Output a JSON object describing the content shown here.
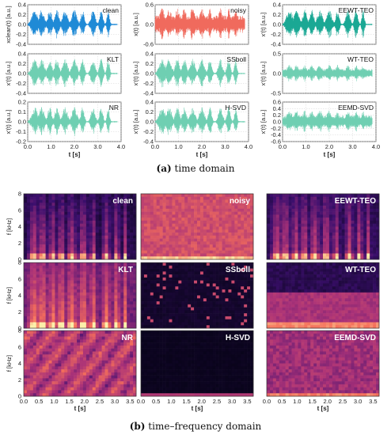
{
  "captions": {
    "a_label": "(a)",
    "a_text": "time domain",
    "b_label": "(b)",
    "b_text": "time–frequency domain"
  },
  "chart_data": [
    {
      "type": "line",
      "panel": "a",
      "xlabel": "t [s]",
      "xlim": [
        0,
        4.0
      ],
      "xticks": [
        "0.0",
        "1.0",
        "2.0",
        "3.0",
        "4.0"
      ],
      "grid": true,
      "plots": [
        {
          "label": "clean",
          "ylabel": "xclean(t) [a.u.]",
          "ylim": [
            -0.4,
            0.4
          ],
          "yticks": [
            "0.4",
            "0.2",
            "0.0",
            "-0.2",
            "-0.4"
          ],
          "color": "#1f8ad6",
          "amplitude": 0.3
        },
        {
          "label": "noisy",
          "ylabel": "x(t) [a.u.]",
          "ylim": [
            -0.6,
            0.6
          ],
          "yticks": [
            "0.6",
            "0.0",
            "-0.6"
          ],
          "color": "#f06a5d",
          "amplitude": 0.5
        },
        {
          "label": "EEWT-TEO",
          "ylabel": "x'(t) [a.u.]",
          "ylim": [
            -0.4,
            0.4
          ],
          "yticks": [
            "0.4",
            "0.2",
            "0.0",
            "-0.2",
            "-0.4"
          ],
          "color": "#1aa894",
          "amplitude": 0.3
        },
        {
          "label": "KLT",
          "ylabel": "x'(t) [a.u.]",
          "ylim": [
            -0.4,
            0.4
          ],
          "yticks": [
            "0.4",
            "0.2",
            "0.0",
            "-0.2",
            "-0.4"
          ],
          "color": "#6fcfb2",
          "amplitude": 0.3
        },
        {
          "label": "SSboll",
          "ylabel": "x'(t) [a.u.]",
          "ylim": [
            -0.4,
            0.4
          ],
          "yticks": [
            "0.4",
            "0.2",
            "0.0",
            "-0.2",
            "-0.4"
          ],
          "color": "#6fcfb2",
          "amplitude": 0.3
        },
        {
          "label": "WT-TEO",
          "ylabel": "x'(t) [a.u.]",
          "ylim": [
            -0.5,
            0.5
          ],
          "yticks": [
            "0.5",
            "0.0",
            "-0.5"
          ],
          "color": "#6fcfb2",
          "amplitude": 0.22
        },
        {
          "label": "NR",
          "ylabel": "x'(t) [a.u.]",
          "ylim": [
            -0.2,
            0.2
          ],
          "yticks": [
            "0.2",
            "0.1",
            "0.0",
            "-0.1",
            "-0.2"
          ],
          "color": "#6fcfb2",
          "amplitude": 0.15
        },
        {
          "label": "H-SVD",
          "ylabel": "x'(t) [a.u.]",
          "ylim": [
            -0.4,
            0.4
          ],
          "yticks": [
            "0.4",
            "0.2",
            "0.0",
            "-0.2",
            "-0.4"
          ],
          "color": "#6fcfb2",
          "amplitude": 0.3
        },
        {
          "label": "EEMD-SVD",
          "ylabel": "x'(t) [a.u.]",
          "ylim": [
            -0.6,
            0.6
          ],
          "yticks": [
            "0.6",
            "0.4",
            "0.2",
            "0.0",
            "-0.2",
            "-0.4",
            "-0.6"
          ],
          "color": "#6fcfb2",
          "amplitude": 0.35
        }
      ]
    },
    {
      "type": "heatmap",
      "panel": "b",
      "xlabel": "t [s]",
      "ylabel": "f [kHz]",
      "xlim": [
        0,
        3.7
      ],
      "ylim": [
        0,
        8
      ],
      "xticks": [
        "0.0",
        "0.5",
        "1.0",
        "1.5",
        "2.0",
        "2.5",
        "3.0",
        "3.5"
      ],
      "yticks": [
        "0",
        "2",
        "4",
        "6",
        "8"
      ],
      "colormap": "magma",
      "plots": [
        {
          "label": "clean",
          "style": "speech",
          "noise": 0.08
        },
        {
          "label": "noisy",
          "style": "uniform",
          "noise": 0.55
        },
        {
          "label": "EEWT-TEO",
          "style": "speech",
          "noise": 0.12
        },
        {
          "label": "KLT",
          "style": "speech",
          "noise": 0.3
        },
        {
          "label": "SSboll",
          "style": "speckle",
          "noise": 0.05
        },
        {
          "label": "WT-TEO",
          "style": "banded",
          "noise": 0.45
        },
        {
          "label": "NR",
          "style": "blotchy",
          "noise": 0.5
        },
        {
          "label": "H-SVD",
          "style": "dark",
          "noise": 0.02
        },
        {
          "label": "EEMD-SVD",
          "style": "uniform",
          "noise": 0.4
        }
      ]
    }
  ]
}
